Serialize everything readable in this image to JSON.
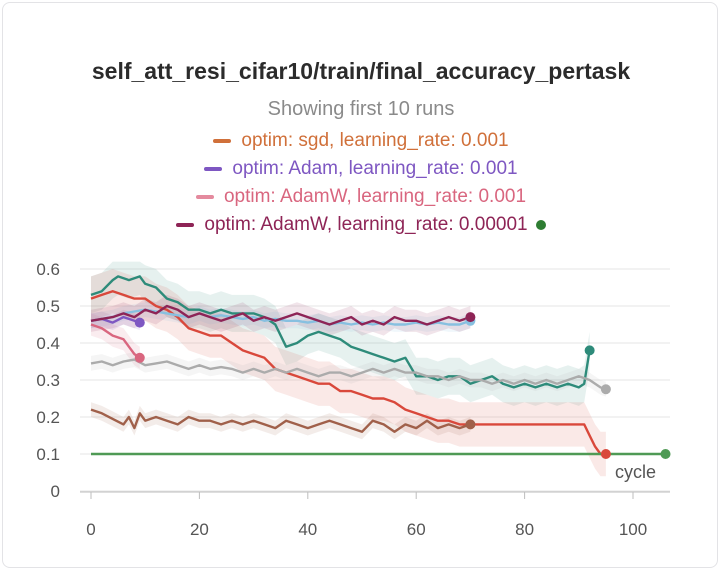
{
  "chart_data": {
    "type": "line",
    "title": "self_att_resi_cifar10/train/final_accuracy_pertask",
    "subtitle": "Showing first 10 runs",
    "xlabel": "cycle",
    "xlim": [
      -2,
      108
    ],
    "ylim": [
      0,
      0.62
    ],
    "xticks": [
      0,
      20,
      40,
      60,
      80,
      100
    ],
    "yticks": [
      0,
      0.1,
      0.2,
      0.3,
      0.4,
      0.5,
      0.6
    ],
    "grid": true,
    "legend": [
      {
        "label": "optim: sgd, learning_rate: 0.001",
        "color": "#d0703a"
      },
      {
        "label": "optim: Adam, learning_rate: 0.001",
        "color": "#7e57c2"
      },
      {
        "label": "optim: AdamW, learning_rate: 0.001",
        "color": "#d9667f"
      },
      {
        "label": "optim: AdamW, learning_rate: 0.00001",
        "color": "#8e2456",
        "dot_color": "#2e7d32"
      }
    ],
    "series": [
      {
        "color": "#2e8b7a",
        "band": 0.05,
        "end_dot": true,
        "points": [
          [
            0,
            0.53
          ],
          [
            2,
            0.54
          ],
          [
            4,
            0.57
          ],
          [
            5,
            0.58
          ],
          [
            7,
            0.57
          ],
          [
            9,
            0.58
          ],
          [
            10,
            0.56
          ],
          [
            12,
            0.55
          ],
          [
            14,
            0.52
          ],
          [
            16,
            0.51
          ],
          [
            18,
            0.49
          ],
          [
            20,
            0.49
          ],
          [
            22,
            0.48
          ],
          [
            24,
            0.49
          ],
          [
            26,
            0.48
          ],
          [
            28,
            0.48
          ],
          [
            30,
            0.48
          ],
          [
            32,
            0.47
          ],
          [
            34,
            0.45
          ],
          [
            36,
            0.39
          ],
          [
            38,
            0.4
          ],
          [
            40,
            0.42
          ],
          [
            42,
            0.43
          ],
          [
            44,
            0.42
          ],
          [
            46,
            0.41
          ],
          [
            48,
            0.39
          ],
          [
            50,
            0.38
          ],
          [
            52,
            0.37
          ],
          [
            54,
            0.36
          ],
          [
            56,
            0.35
          ],
          [
            58,
            0.36
          ],
          [
            60,
            0.31
          ],
          [
            62,
            0.31
          ],
          [
            64,
            0.3
          ],
          [
            66,
            0.31
          ],
          [
            68,
            0.31
          ],
          [
            70,
            0.29
          ],
          [
            72,
            0.3
          ],
          [
            74,
            0.31
          ],
          [
            76,
            0.29
          ],
          [
            78,
            0.28
          ],
          [
            80,
            0.29
          ],
          [
            82,
            0.28
          ],
          [
            84,
            0.29
          ],
          [
            86,
            0.28
          ],
          [
            88,
            0.29
          ],
          [
            90,
            0.28
          ],
          [
            91,
            0.29
          ],
          [
            92,
            0.38
          ]
        ]
      },
      {
        "color": "#d9667f",
        "band": 0.03,
        "end_dot": true,
        "points": [
          [
            0,
            0.45
          ],
          [
            2,
            0.44
          ],
          [
            4,
            0.42
          ],
          [
            6,
            0.41
          ],
          [
            7,
            0.39
          ],
          [
            8,
            0.37
          ],
          [
            9,
            0.36
          ]
        ]
      },
      {
        "color": "#7e57c2",
        "band": 0.02,
        "end_dot": true,
        "points": [
          [
            0,
            0.46
          ],
          [
            2,
            0.465
          ],
          [
            4,
            0.455
          ],
          [
            6,
            0.47
          ],
          [
            8,
            0.46
          ],
          [
            9,
            0.455
          ]
        ]
      },
      {
        "color": "#d9483b",
        "band": 0.06,
        "end_dot": true,
        "points": [
          [
            0,
            0.52
          ],
          [
            2,
            0.53
          ],
          [
            4,
            0.54
          ],
          [
            6,
            0.53
          ],
          [
            8,
            0.52
          ],
          [
            10,
            0.52
          ],
          [
            12,
            0.5
          ],
          [
            14,
            0.49
          ],
          [
            16,
            0.47
          ],
          [
            18,
            0.44
          ],
          [
            20,
            0.43
          ],
          [
            22,
            0.42
          ],
          [
            24,
            0.42
          ],
          [
            26,
            0.4
          ],
          [
            28,
            0.38
          ],
          [
            30,
            0.37
          ],
          [
            32,
            0.36
          ],
          [
            34,
            0.33
          ],
          [
            36,
            0.32
          ],
          [
            38,
            0.31
          ],
          [
            40,
            0.3
          ],
          [
            42,
            0.29
          ],
          [
            44,
            0.29
          ],
          [
            46,
            0.27
          ],
          [
            48,
            0.27
          ],
          [
            50,
            0.26
          ],
          [
            52,
            0.25
          ],
          [
            54,
            0.25
          ],
          [
            56,
            0.24
          ],
          [
            58,
            0.22
          ],
          [
            60,
            0.21
          ],
          [
            62,
            0.2
          ],
          [
            64,
            0.19
          ],
          [
            66,
            0.19
          ],
          [
            68,
            0.18
          ],
          [
            70,
            0.18
          ],
          [
            72,
            0.18
          ],
          [
            74,
            0.18
          ],
          [
            76,
            0.18
          ],
          [
            78,
            0.18
          ],
          [
            80,
            0.18
          ],
          [
            82,
            0.18
          ],
          [
            84,
            0.18
          ],
          [
            86,
            0.18
          ],
          [
            88,
            0.18
          ],
          [
            90,
            0.18
          ],
          [
            91,
            0.18
          ],
          [
            92,
            0.15
          ],
          [
            93,
            0.12
          ],
          [
            94,
            0.1
          ],
          [
            95,
            0.1
          ]
        ]
      },
      {
        "color": "#ababab",
        "band": 0.02,
        "end_dot": true,
        "points": [
          [
            0,
            0.345
          ],
          [
            2,
            0.35
          ],
          [
            4,
            0.34
          ],
          [
            6,
            0.35
          ],
          [
            8,
            0.355
          ],
          [
            10,
            0.34
          ],
          [
            12,
            0.345
          ],
          [
            14,
            0.35
          ],
          [
            16,
            0.34
          ],
          [
            18,
            0.33
          ],
          [
            20,
            0.34
          ],
          [
            22,
            0.33
          ],
          [
            24,
            0.335
          ],
          [
            26,
            0.33
          ],
          [
            28,
            0.32
          ],
          [
            30,
            0.33
          ],
          [
            32,
            0.32
          ],
          [
            34,
            0.33
          ],
          [
            36,
            0.32
          ],
          [
            38,
            0.33
          ],
          [
            40,
            0.32
          ],
          [
            42,
            0.31
          ],
          [
            44,
            0.32
          ],
          [
            46,
            0.32
          ],
          [
            48,
            0.31
          ],
          [
            50,
            0.32
          ],
          [
            52,
            0.33
          ],
          [
            54,
            0.32
          ],
          [
            56,
            0.33
          ],
          [
            58,
            0.32
          ],
          [
            60,
            0.32
          ],
          [
            62,
            0.31
          ],
          [
            64,
            0.31
          ],
          [
            66,
            0.3
          ],
          [
            68,
            0.31
          ],
          [
            70,
            0.3
          ],
          [
            72,
            0.3
          ],
          [
            74,
            0.29
          ],
          [
            76,
            0.3
          ],
          [
            78,
            0.29
          ],
          [
            80,
            0.3
          ],
          [
            82,
            0.29
          ],
          [
            84,
            0.3
          ],
          [
            86,
            0.29
          ],
          [
            88,
            0.3
          ],
          [
            90,
            0.31
          ],
          [
            92,
            0.3
          ],
          [
            94,
            0.28
          ],
          [
            95,
            0.275
          ]
        ]
      },
      {
        "color": "#87c0e0",
        "band": 0.02,
        "end_dot": true,
        "points": [
          [
            0,
            0.46
          ],
          [
            2,
            0.465
          ],
          [
            4,
            0.47
          ],
          [
            6,
            0.48
          ],
          [
            8,
            0.485
          ],
          [
            10,
            0.49
          ],
          [
            12,
            0.485
          ],
          [
            14,
            0.48
          ],
          [
            16,
            0.475
          ],
          [
            18,
            0.47
          ],
          [
            20,
            0.48
          ],
          [
            22,
            0.47
          ],
          [
            24,
            0.475
          ],
          [
            26,
            0.47
          ],
          [
            28,
            0.465
          ],
          [
            30,
            0.47
          ],
          [
            32,
            0.46
          ],
          [
            34,
            0.465
          ],
          [
            36,
            0.46
          ],
          [
            38,
            0.46
          ],
          [
            40,
            0.455
          ],
          [
            42,
            0.46
          ],
          [
            44,
            0.45
          ],
          [
            46,
            0.455
          ],
          [
            48,
            0.45
          ],
          [
            50,
            0.455
          ],
          [
            52,
            0.45
          ],
          [
            54,
            0.455
          ],
          [
            56,
            0.45
          ],
          [
            58,
            0.45
          ],
          [
            60,
            0.455
          ],
          [
            62,
            0.45
          ],
          [
            64,
            0.455
          ],
          [
            66,
            0.45
          ],
          [
            68,
            0.45
          ],
          [
            70,
            0.46
          ]
        ]
      },
      {
        "color": "#8e2456",
        "band": 0.03,
        "end_dot": true,
        "points": [
          [
            0,
            0.46
          ],
          [
            2,
            0.465
          ],
          [
            4,
            0.47
          ],
          [
            6,
            0.48
          ],
          [
            8,
            0.47
          ],
          [
            10,
            0.49
          ],
          [
            12,
            0.48
          ],
          [
            14,
            0.5
          ],
          [
            16,
            0.49
          ],
          [
            18,
            0.47
          ],
          [
            20,
            0.48
          ],
          [
            22,
            0.47
          ],
          [
            24,
            0.46
          ],
          [
            26,
            0.47
          ],
          [
            28,
            0.48
          ],
          [
            30,
            0.46
          ],
          [
            32,
            0.47
          ],
          [
            34,
            0.46
          ],
          [
            36,
            0.47
          ],
          [
            38,
            0.48
          ],
          [
            40,
            0.47
          ],
          [
            42,
            0.46
          ],
          [
            44,
            0.45
          ],
          [
            46,
            0.46
          ],
          [
            48,
            0.47
          ],
          [
            50,
            0.45
          ],
          [
            52,
            0.46
          ],
          [
            54,
            0.45
          ],
          [
            56,
            0.47
          ],
          [
            58,
            0.46
          ],
          [
            60,
            0.46
          ],
          [
            62,
            0.45
          ],
          [
            64,
            0.46
          ],
          [
            66,
            0.47
          ],
          [
            68,
            0.46
          ],
          [
            70,
            0.47
          ]
        ]
      },
      {
        "color": "#a0604a",
        "band": 0.02,
        "end_dot": true,
        "points": [
          [
            0,
            0.22
          ],
          [
            2,
            0.21
          ],
          [
            4,
            0.195
          ],
          [
            6,
            0.18
          ],
          [
            7,
            0.2
          ],
          [
            8,
            0.17
          ],
          [
            9,
            0.21
          ],
          [
            10,
            0.19
          ],
          [
            12,
            0.2
          ],
          [
            14,
            0.19
          ],
          [
            16,
            0.18
          ],
          [
            18,
            0.2
          ],
          [
            20,
            0.19
          ],
          [
            22,
            0.19
          ],
          [
            24,
            0.18
          ],
          [
            26,
            0.19
          ],
          [
            28,
            0.18
          ],
          [
            30,
            0.19
          ],
          [
            32,
            0.18
          ],
          [
            34,
            0.17
          ],
          [
            36,
            0.19
          ],
          [
            38,
            0.18
          ],
          [
            40,
            0.17
          ],
          [
            42,
            0.18
          ],
          [
            44,
            0.19
          ],
          [
            46,
            0.18
          ],
          [
            48,
            0.17
          ],
          [
            50,
            0.16
          ],
          [
            52,
            0.19
          ],
          [
            54,
            0.18
          ],
          [
            56,
            0.16
          ],
          [
            58,
            0.18
          ],
          [
            60,
            0.17
          ],
          [
            62,
            0.19
          ],
          [
            64,
            0.17
          ],
          [
            66,
            0.18
          ],
          [
            68,
            0.17
          ],
          [
            70,
            0.18
          ]
        ]
      },
      {
        "color": "#4f9a55",
        "band": 0.0,
        "end_dot": true,
        "points": [
          [
            0,
            0.1
          ],
          [
            20,
            0.1
          ],
          [
            40,
            0.1
          ],
          [
            60,
            0.1
          ],
          [
            80,
            0.1
          ],
          [
            100,
            0.1
          ],
          [
            106,
            0.1
          ]
        ]
      }
    ]
  }
}
